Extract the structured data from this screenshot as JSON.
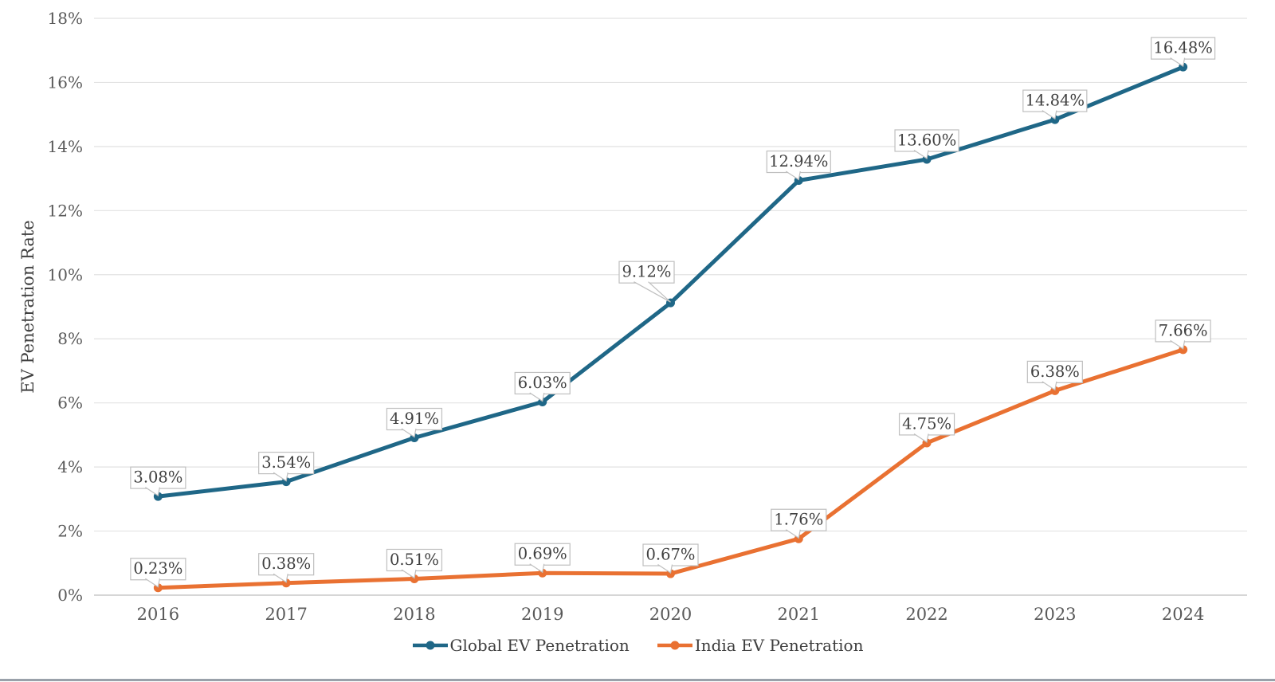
{
  "chart_data": {
    "type": "line",
    "categories": [
      "2016",
      "2017",
      "2018",
      "2019",
      "2020",
      "2021",
      "2022",
      "2023",
      "2024"
    ],
    "series": [
      {
        "name": "Global EV Penetration",
        "color": "#1F6787",
        "values": [
          3.08,
          3.54,
          4.91,
          6.03,
          9.12,
          12.94,
          13.6,
          14.84,
          16.48
        ],
        "labels": [
          "3.08%",
          "3.54%",
          "4.91%",
          "6.03%",
          "9.12%",
          "12.94%",
          "13.60%",
          "14.84%",
          "16.48%"
        ]
      },
      {
        "name": "India EV Penetration",
        "color": "#E97132",
        "values": [
          0.23,
          0.38,
          0.51,
          0.69,
          0.67,
          1.76,
          4.75,
          6.38,
          7.66
        ],
        "labels": [
          "0.23%",
          "0.38%",
          "0.51%",
          "0.69%",
          "0.67%",
          "1.76%",
          "4.75%",
          "6.38%",
          "7.66%"
        ]
      }
    ],
    "title": "",
    "xlabel": "",
    "ylabel": "EV Penetration Rate",
    "ylim": [
      0,
      18
    ],
    "ytick_step": 2,
    "ytick_labels": [
      "0%",
      "2%",
      "4%",
      "6%",
      "8%",
      "10%",
      "12%",
      "14%",
      "16%",
      "18%"
    ],
    "grid": true,
    "data_labels": true,
    "legend_position": "bottom"
  },
  "style_colors": {
    "grid_line": "#E2E2E2",
    "axis_line": "#C9C9C9",
    "tick_text": "#595959",
    "label_text": "#404040",
    "callout_border": "#BFBFBF",
    "callout_fill": "#FFFFFF",
    "bottom_rule": "#9AA1AA"
  }
}
